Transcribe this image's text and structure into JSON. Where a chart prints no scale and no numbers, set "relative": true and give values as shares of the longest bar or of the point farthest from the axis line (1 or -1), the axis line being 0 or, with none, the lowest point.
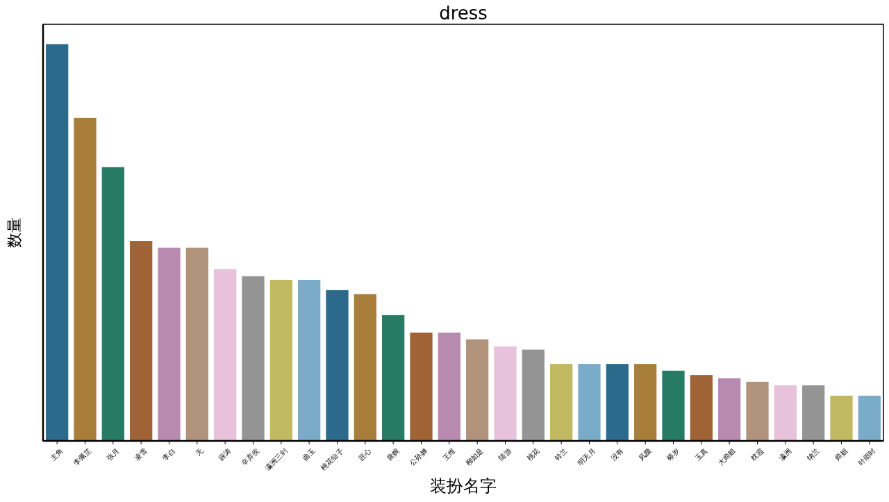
{
  "chart_data": {
    "type": "bar",
    "title": "dress",
    "xlabel": "装扮名字",
    "ylabel": "数量",
    "relative": true,
    "categories": [
      "主角",
      "李佩芷",
      "张月",
      "凌雪",
      "李白",
      "无",
      "薛涛",
      "辛弃疾",
      "瀛洲三剑",
      "曲玉",
      "桃花仙子",
      "匠心",
      "唐婉",
      "公孙婵",
      "王维",
      "柳如是",
      "陆游",
      "桃花",
      "铃兰",
      "明无月",
      "没有",
      "风颜",
      "椿岁",
      "玉真",
      "大师姐",
      "枕霞",
      "瀛洲",
      "纳兰",
      "师姐",
      "叶雨时"
    ],
    "values": [
      1,
      0.814,
      0.69,
      0.504,
      0.487,
      0.487,
      0.433,
      0.415,
      0.406,
      0.406,
      0.38,
      0.37,
      0.317,
      0.273,
      0.273,
      0.256,
      0.238,
      0.23,
      0.194,
      0.194,
      0.194,
      0.194,
      0.177,
      0.166,
      0.158,
      0.149,
      0.14,
      0.14,
      0.114,
      0.114
    ],
    "colors": [
      "#2c6a8c",
      "#a97e3b",
      "#277a63",
      "#a06335",
      "#b88ab0",
      "#b0937a",
      "#e8c1db",
      "#949494",
      "#c0b962",
      "#7aabc9",
      "#2c6a8c",
      "#a97e3b",
      "#277a63",
      "#a06335",
      "#b88ab0",
      "#b0937a",
      "#e8c1db",
      "#949494",
      "#c0b962",
      "#7aabc9",
      "#2c6a8c",
      "#a97e3b",
      "#277a63",
      "#a06335",
      "#b88ab0",
      "#b0937a",
      "#e8c1db",
      "#949494",
      "#c0b962",
      "#7aabc9"
    ],
    "orientation": "vertical"
  }
}
